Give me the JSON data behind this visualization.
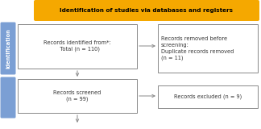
{
  "title": "Identification of studies via databases and registers",
  "title_bg": "#F5A800",
  "title_text_color": "#000000",
  "sidebar_color": "#7B9FD4",
  "sidebar_label": "Identification",
  "box1_text": "Records identified from*:\n   Total (n = 110)",
  "box2_text": "Records removed before\nscreening:\nDuplicate records removed\n(n = 11)",
  "box3_text": "Records screened\n(n = 99)",
  "box4_text": "Records excluded (n = 9)",
  "box_edge_color": "#888888",
  "box_fill": "#FFFFFF",
  "arrow_color": "#888888",
  "font_size": 4.8,
  "bg_color": "#FFFFFF",
  "title_font_size": 5.2,
  "sidebar_font_size": 4.8
}
